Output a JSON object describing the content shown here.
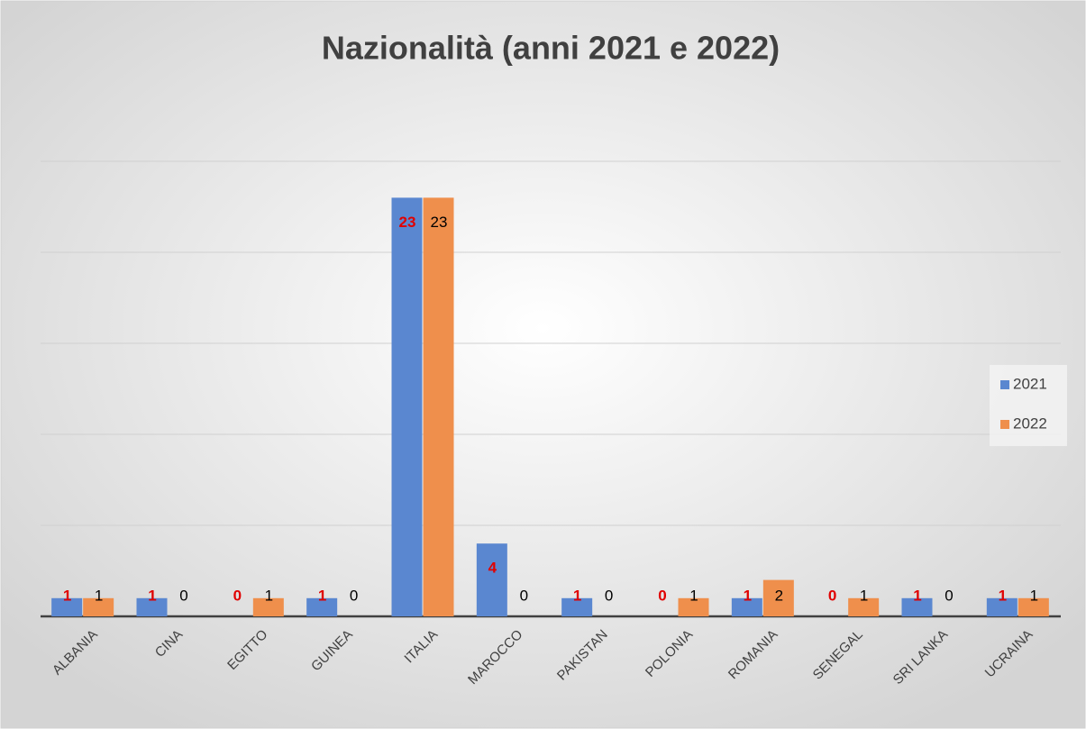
{
  "chart_data": {
    "type": "bar",
    "title": "Nazionalità (anni 2021 e 2022)",
    "categories": [
      "ALBANIA",
      "CINA",
      "EGITTO",
      "GUINEA",
      "ITALIA",
      "MAROCCO",
      "PAKISTAN",
      "POLONIA",
      "ROMANIA",
      "SENEGAL",
      "SRI LANKA",
      "UCRAINA"
    ],
    "series": [
      {
        "name": "2021",
        "color": "#5a87d0",
        "label_color": "#e00000",
        "values": [
          1,
          1,
          0,
          1,
          23,
          4,
          1,
          0,
          1,
          0,
          1,
          1
        ]
      },
      {
        "name": "2022",
        "color": "#ef8f4c",
        "label_color": "#000000",
        "values": [
          1,
          0,
          1,
          0,
          23,
          0,
          0,
          1,
          2,
          1,
          0,
          1
        ]
      }
    ],
    "ylim": [
      0,
      25
    ],
    "yticks": [
      0,
      5,
      10,
      15,
      20,
      25
    ],
    "grid": true,
    "legend": "right"
  }
}
